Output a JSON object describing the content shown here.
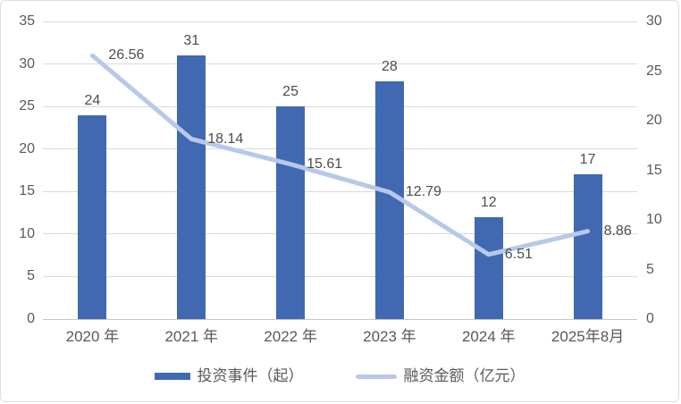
{
  "chart_data": {
    "type": "bar+line",
    "title": "",
    "categories": [
      "2020 年",
      "2021 年",
      "2022 年",
      "2023 年",
      "2024 年",
      "2025年8月"
    ],
    "series": [
      {
        "name": "投资事件（起）",
        "type": "bar",
        "axis": "left",
        "values": [
          24,
          31,
          25,
          28,
          12,
          17
        ],
        "labels": [
          "24",
          "31",
          "25",
          "28",
          "12",
          "17"
        ]
      },
      {
        "name": "融资金额（亿元）",
        "type": "line",
        "axis": "right",
        "values": [
          26.56,
          18.14,
          15.61,
          12.79,
          6.51,
          8.86
        ],
        "labels": [
          "26.56",
          "18.14",
          "15.61",
          "12.79",
          "6.51",
          "8.86"
        ]
      }
    ],
    "left_axis": {
      "min": 0,
      "max": 35,
      "step": 5,
      "ticks": [
        0,
        5,
        10,
        15,
        20,
        25,
        30,
        35
      ]
    },
    "right_axis": {
      "min": 0,
      "max": 30,
      "step": 5,
      "ticks": [
        0,
        5,
        10,
        15,
        20,
        25,
        30
      ]
    },
    "grid": true,
    "legend_position": "bottom"
  },
  "legend": {
    "items": [
      {
        "label": "投资事件（起）"
      },
      {
        "label": "融资金额（亿元）"
      }
    ]
  },
  "colors": {
    "bar": "#4169b2",
    "line": "#b7c9e8",
    "grid": "#d9d9d9",
    "baseline": "#c6c6c6",
    "axis_text": "#595959",
    "data_label_text": "#4d4d4d",
    "card_border": "#dcdfe2"
  }
}
